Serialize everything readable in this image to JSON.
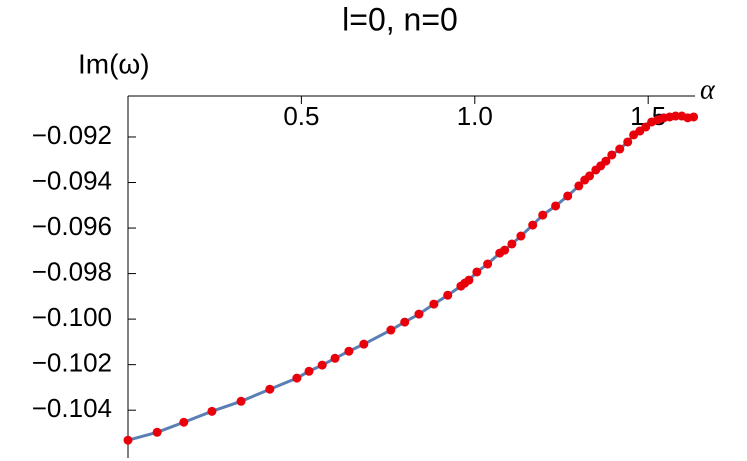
{
  "chart_data": {
    "type": "line_scatter",
    "title": "l=0, n=0",
    "y_label": "Im(ω)",
    "x_label": "α",
    "x": [
      0,
      0.084,
      0.161,
      0.242,
      0.326,
      0.409,
      0.487,
      0.522,
      0.56,
      0.597,
      0.637,
      0.68,
      0.758,
      0.798,
      0.839,
      0.882,
      0.922,
      0.96,
      0.971,
      0.983,
      1.006,
      1.037,
      1.072,
      1.086,
      1.107,
      1.133,
      1.167,
      1.196,
      1.233,
      1.268,
      1.3,
      1.317,
      1.331,
      1.349,
      1.363,
      1.378,
      1.395,
      1.418,
      1.441,
      1.458,
      1.476,
      1.493,
      1.51,
      1.527,
      1.545,
      1.562,
      1.579,
      1.597,
      1.614,
      1.631
    ],
    "values": [
      -0.10532,
      -0.10497,
      -0.10453,
      -0.10405,
      -0.10361,
      -0.10308,
      -0.10259,
      -0.10229,
      -0.10202,
      -0.10172,
      -0.10141,
      -0.1011,
      -0.10048,
      -0.10013,
      -0.09978,
      -0.09934,
      -0.09895,
      -0.09855,
      -0.09842,
      -0.09829,
      -0.09793,
      -0.09758,
      -0.0971,
      -0.09697,
      -0.0967,
      -0.09635,
      -0.09587,
      -0.09543,
      -0.09503,
      -0.09459,
      -0.09415,
      -0.09389,
      -0.09371,
      -0.09345,
      -0.09327,
      -0.09306,
      -0.09279,
      -0.09253,
      -0.09222,
      -0.09191,
      -0.09174,
      -0.09156,
      -0.09134,
      -0.09125,
      -0.09116,
      -0.09112,
      -0.09108,
      -0.09108,
      -0.09116,
      -0.09112
    ],
    "color": "#e8000b",
    "line_color": "#5b7fb4",
    "xlim": [
      0,
      1.635
    ],
    "ylim": [
      -0.1061,
      -0.0902
    ],
    "xticks": [
      0.5,
      {
        "value": 1,
        "label": "1.0"
      },
      1.5
    ],
    "yticks": [
      {
        "value": -0.092,
        "label": "−0.092"
      },
      {
        "value": -0.094,
        "label": "−0.094"
      },
      {
        "value": -0.096,
        "label": "−0.096"
      },
      {
        "value": -0.098,
        "label": "−0.098"
      },
      {
        "value": -0.1,
        "label": "−0.100"
      },
      {
        "value": -0.102,
        "label": "−0.102"
      },
      {
        "value": -0.104,
        "label": "−0.104"
      }
    ]
  }
}
